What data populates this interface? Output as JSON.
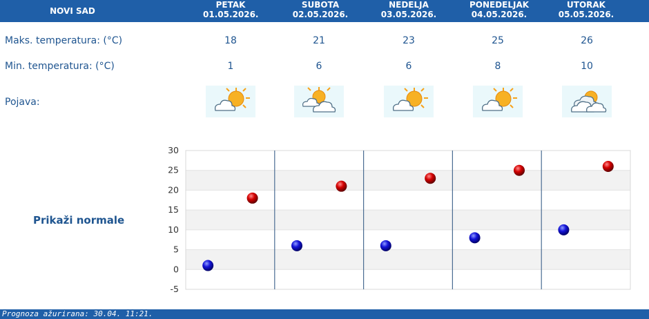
{
  "header": {
    "city": "NOVI SAD",
    "days": [
      {
        "name": "PETAK",
        "date": "01.05.2026."
      },
      {
        "name": "SUBOTA",
        "date": "02.05.2026."
      },
      {
        "name": "NEDELJA",
        "date": "03.05.2026."
      },
      {
        "name": "PONEDELJAK",
        "date": "04.05.2026."
      },
      {
        "name": "UTORAK",
        "date": "05.05.2026."
      }
    ]
  },
  "rows": {
    "max_label": "Maks. temperatura: (°C)",
    "min_label": "Min. temperatura: (°C)",
    "phenomenon_label": "Pojava:",
    "max_values": [
      "18",
      "21",
      "23",
      "25",
      "26"
    ],
    "min_values": [
      "1",
      "6",
      "6",
      "8",
      "10"
    ],
    "icons": [
      "sun-cloud-icon",
      "cloud-sun-icon",
      "sun-cloud-icon",
      "sun-cloud-icon",
      "clouds-sun-icon"
    ]
  },
  "normals_link": "Prikaži normale",
  "footer": "Prognoza ažurirana:  30.04. 11:21.",
  "colors": {
    "header_bg": "#1f5fa8",
    "text": "#1f5590",
    "max_marker": "#d40000",
    "min_marker": "#0000c8"
  },
  "chart_data": {
    "type": "scatter",
    "categories": [
      "PETAK",
      "SUBOTA",
      "NEDELJA",
      "PONEDELJAK",
      "UTORAK"
    ],
    "series": [
      {
        "values": [
          1,
          6,
          6,
          8,
          10
        ]
      },
      {
        "values": [
          18,
          21,
          23,
          25,
          26
        ]
      }
    ],
    "yticks": [
      "30",
      "25",
      "20",
      "15",
      "10",
      "5",
      "0",
      "-5"
    ],
    "ylim": [
      -5,
      30
    ],
    "grid": true
  }
}
